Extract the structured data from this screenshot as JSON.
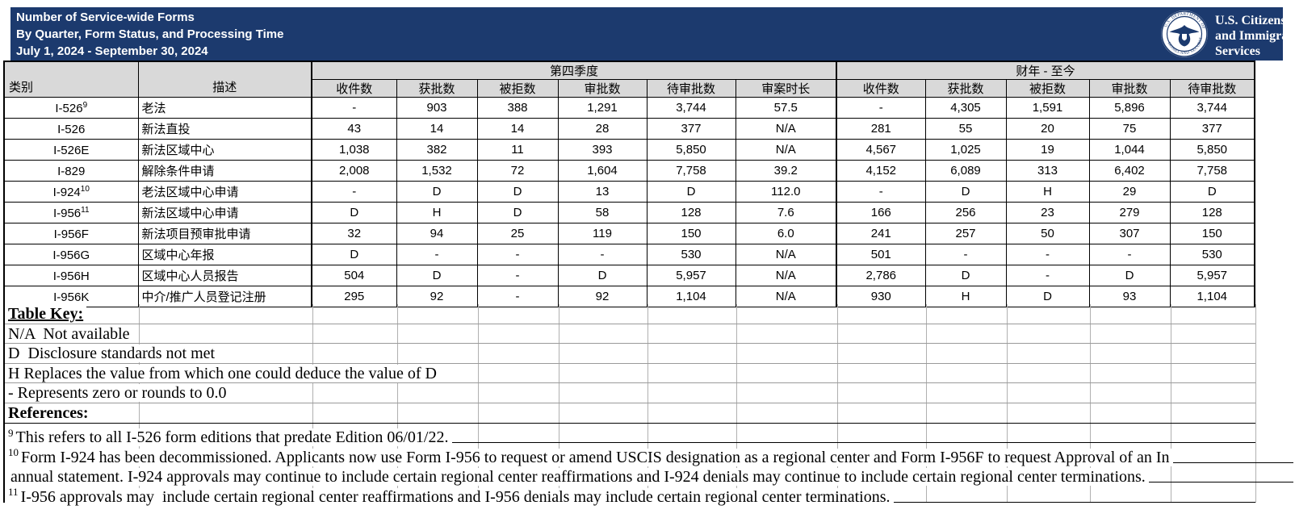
{
  "colors": {
    "navy": "#1C3A6E",
    "header_gray": "#D9D9D9",
    "gridline": "#B0B0B0"
  },
  "title": {
    "line1": "Number of Service-wide Forms",
    "line2": "By Quarter, Form Status, and Processing Time",
    "line3": "July 1, 2024 - September 30, 2024"
  },
  "logo": {
    "agency_line1": "U.S. Citizenship",
    "agency_line2": "and Immigration",
    "agency_line3": "Services",
    "seal_top_text": "U.S. DEPARTMENT OF",
    "seal_bottom_text": "HOMELAND SECURITY"
  },
  "table": {
    "headers": {
      "category": "类别",
      "description": "描述",
      "q4_group": "第四季度",
      "fy_group": "财年 - 至今",
      "q4_cols": [
        "收件数",
        "获批数",
        "被拒数",
        "审批数",
        "待审批数",
        "审案时长"
      ],
      "fy_cols": [
        "收件数",
        "获批数",
        "被拒数",
        "审批数",
        "待审批数"
      ]
    },
    "rows": [
      {
        "category": "I-526",
        "sup": "9",
        "description": "老法",
        "q4": [
          "-",
          "903",
          "388",
          "1,291",
          "3,744",
          "57.5"
        ],
        "fy": [
          "-",
          "4,305",
          "1,591",
          "5,896",
          "3,744"
        ]
      },
      {
        "category": "I-526",
        "sup": "",
        "description": "新法直投",
        "q4": [
          "43",
          "14",
          "14",
          "28",
          "377",
          "N/A"
        ],
        "fy": [
          "281",
          "55",
          "20",
          "75",
          "377"
        ]
      },
      {
        "category": "I-526E",
        "sup": "",
        "description": "新法区域中心",
        "q4": [
          "1,038",
          "382",
          "11",
          "393",
          "5,850",
          "N/A"
        ],
        "fy": [
          "4,567",
          "1,025",
          "19",
          "1,044",
          "5,850"
        ]
      },
      {
        "category": "I-829",
        "sup": "",
        "description": "解除条件申请",
        "q4": [
          "2,008",
          "1,532",
          "72",
          "1,604",
          "7,758",
          "39.2"
        ],
        "fy": [
          "4,152",
          "6,089",
          "313",
          "6,402",
          "7,758"
        ]
      },
      {
        "category": "I-924",
        "sup": "10",
        "description": "老法区域中心申请",
        "q4": [
          "-",
          "D",
          "D",
          "13",
          "D",
          "112.0"
        ],
        "fy": [
          "-",
          "D",
          "H",
          "29",
          "D"
        ]
      },
      {
        "category": "I-956",
        "sup": "11",
        "description": "新法区域中心申请",
        "q4": [
          "D",
          "H",
          "D",
          "58",
          "128",
          "7.6"
        ],
        "fy": [
          "166",
          "256",
          "23",
          "279",
          "128"
        ]
      },
      {
        "category": "I-956F",
        "sup": "",
        "description": "新法项目预审批申请",
        "q4": [
          "32",
          "94",
          "25",
          "119",
          "150",
          "6.0"
        ],
        "fy": [
          "241",
          "257",
          "50",
          "307",
          "150"
        ]
      },
      {
        "category": "I-956G",
        "sup": "",
        "description": "区域中心年报",
        "q4": [
          "D",
          "-",
          "-",
          "-",
          "530",
          "N/A"
        ],
        "fy": [
          "501",
          "-",
          "-",
          "-",
          "530"
        ]
      },
      {
        "category": "I-956H",
        "sup": "",
        "description": "区域中心人员报告",
        "q4": [
          "504",
          "D",
          "-",
          "D",
          "5,957",
          "N/A"
        ],
        "fy": [
          "2,786",
          "D",
          "-",
          "D",
          "5,957"
        ]
      },
      {
        "category": "I-956K",
        "sup": "",
        "description": "中介/推广人员登记注册",
        "q4": [
          "295",
          "92",
          "-",
          "92",
          "1,104",
          "N/A"
        ],
        "fy": [
          "930",
          "H",
          "D",
          "93",
          "1,104"
        ]
      }
    ]
  },
  "table_key": {
    "heading": "Table Key:",
    "items": [
      "N/A  Not available",
      "D  Disclosure standards not met",
      "H Replaces the value from which one could deduce the value of D",
      "- Represents zero or rounds to 0.0"
    ]
  },
  "references": {
    "heading": "References:",
    "footnotes": [
      {
        "sup": "9",
        "text": "This refers to all I-526 form editions that predate Edition 06/01/22."
      },
      {
        "sup": "10",
        "text": "Form I-924 has been decommissioned. Applicants now use Form I-956 to request or amend USCIS designation as a regional center and Form I-956F to request Approval of an In"
      },
      {
        "sup": "",
        "text": "annual statement. I-924 approvals may continue to include certain regional center reaffirmations and I-924 denials may continue to include certain regional center terminations."
      },
      {
        "sup": "11",
        "text": "I-956 approvals may  include certain regional center reaffirmations and I-956 denials may include certain regional center terminations."
      }
    ]
  }
}
